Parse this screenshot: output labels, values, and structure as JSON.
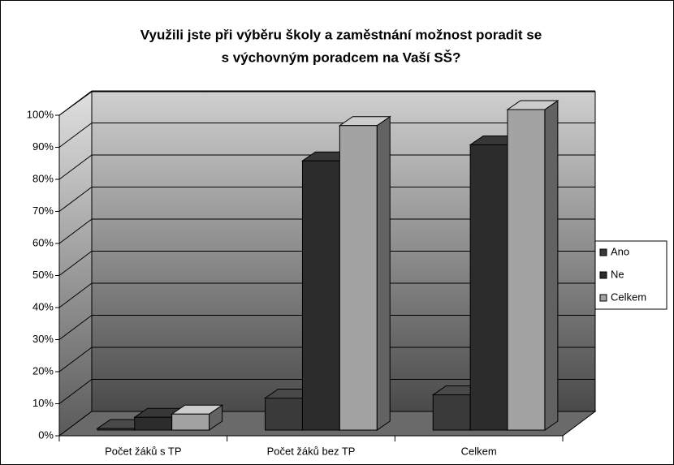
{
  "chart_data": {
    "type": "bar3d",
    "title": [
      "Využili jste při výběru školy a zaměstnání možnost poradit se",
      "s výchovným poradcem na Vaší SŠ?"
    ],
    "categories": [
      "Počet žáků s TP",
      "Počet žáků bez TP",
      "Celkem"
    ],
    "series": [
      {
        "name": "Ano",
        "color": "#3a3a3a",
        "values": [
          0.5,
          10,
          11
        ]
      },
      {
        "name": "Ne",
        "color": "#2c2c2c",
        "values": [
          4,
          84,
          89
        ]
      },
      {
        "name": "Celkem",
        "color": "#a3a3a3",
        "values": [
          5,
          95,
          100
        ]
      }
    ],
    "ylim": [
      0,
      100
    ],
    "yticks": [
      {
        "value": 0,
        "label": "0%"
      },
      {
        "value": 10,
        "label": "10%"
      },
      {
        "value": 20,
        "label": "20%"
      },
      {
        "value": 30,
        "label": "30%"
      },
      {
        "value": 40,
        "label": "40%"
      },
      {
        "value": 50,
        "label": "50%"
      },
      {
        "value": 60,
        "label": "60%"
      },
      {
        "value": 70,
        "label": "70%"
      },
      {
        "value": 80,
        "label": "80%"
      },
      {
        "value": 90,
        "label": "90%"
      },
      {
        "value": 100,
        "label": "100%"
      }
    ],
    "grid": true,
    "legend": "right"
  }
}
